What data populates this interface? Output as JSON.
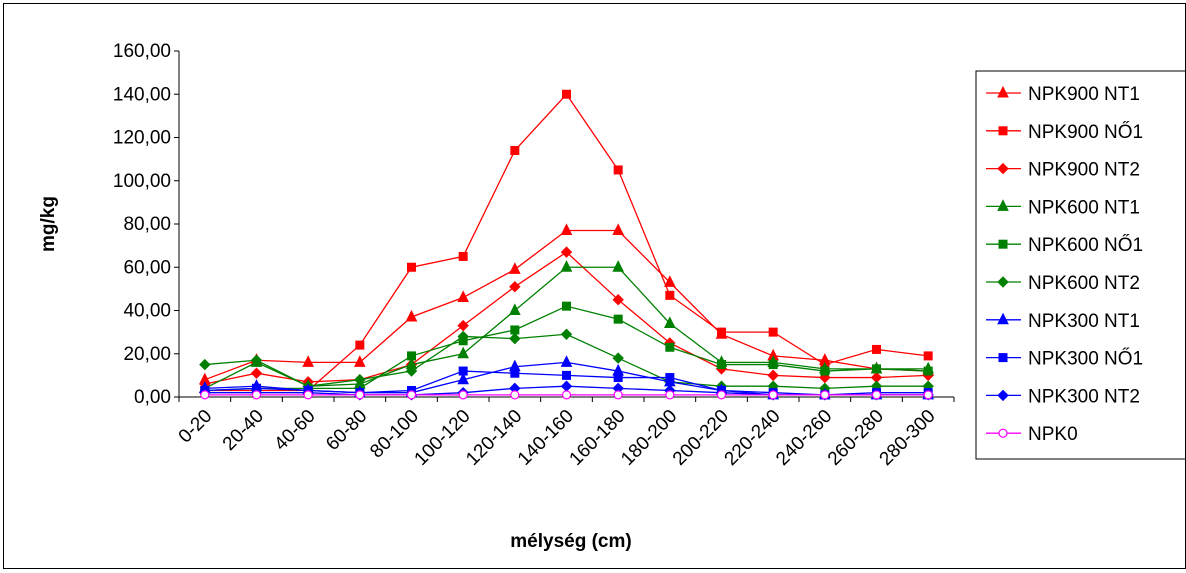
{
  "chart_data": {
    "type": "line",
    "title": "",
    "xlabel": "mélység (cm)",
    "ylabel": "mg/kg",
    "ylim": [
      0,
      160
    ],
    "yticks": [
      "0,00",
      "20,00",
      "40,00",
      "60,00",
      "80,00",
      "100,00",
      "120,00",
      "140,00",
      "160,00"
    ],
    "grid": false,
    "legend_position": "right",
    "categories": [
      "0-20",
      "20-40",
      "40-60",
      "60-80",
      "80-100",
      "100-120",
      "120-140",
      "140-160",
      "160-180",
      "180-200",
      "200-220",
      "220-240",
      "240-260",
      "260-280",
      "280-300"
    ],
    "series": [
      {
        "name": "NPK900 NT1",
        "color": "#ff0000",
        "marker": "triangle",
        "values": [
          8,
          17,
          16,
          16,
          37,
          46,
          59,
          77,
          77,
          53,
          29,
          19,
          17,
          13,
          12
        ]
      },
      {
        "name": "NPK900 NŐ1",
        "color": "#ff0000",
        "marker": "square",
        "values": [
          3,
          3,
          3,
          24,
          60,
          65,
          114,
          140,
          105,
          47,
          30,
          30,
          15,
          22,
          19
        ]
      },
      {
        "name": "NPK900 NT2",
        "color": "#ff0000",
        "marker": "diamond",
        "values": [
          6,
          11,
          7,
          8,
          15,
          33,
          51,
          67,
          45,
          25,
          13,
          10,
          9,
          9,
          10
        ]
      },
      {
        "name": "NPK600 NT1",
        "color": "#008000",
        "marker": "triangle",
        "values": [
          4,
          16,
          5,
          6,
          15,
          20,
          40,
          60,
          60,
          34,
          16,
          16,
          13,
          13,
          13
        ]
      },
      {
        "name": "NPK600 NŐ1",
        "color": "#008000",
        "marker": "square",
        "values": [
          3,
          4,
          4,
          4,
          19,
          26,
          31,
          42,
          36,
          23,
          15,
          15,
          12,
          13,
          12
        ]
      },
      {
        "name": "NPK600 NT2",
        "color": "#008000",
        "marker": "diamond",
        "values": [
          15,
          17,
          5,
          8,
          12,
          28,
          27,
          29,
          18,
          7,
          5,
          5,
          4,
          5,
          5
        ]
      },
      {
        "name": "NPK300 NT1",
        "color": "#0000ff",
        "marker": "triangle",
        "values": [
          4,
          5,
          3,
          2,
          2,
          8,
          14,
          16,
          12,
          7,
          3,
          1,
          1,
          1,
          1
        ]
      },
      {
        "name": "NPK300 NŐ1",
        "color": "#0000ff",
        "marker": "square",
        "values": [
          3,
          4,
          3,
          2,
          3,
          12,
          11,
          10,
          9,
          9,
          3,
          2,
          1,
          2,
          2
        ]
      },
      {
        "name": "NPK300 NT2",
        "color": "#0000ff",
        "marker": "diamond",
        "values": [
          2,
          2,
          2,
          1,
          1,
          2,
          4,
          5,
          4,
          3,
          2,
          1,
          1,
          1,
          1
        ]
      },
      {
        "name": "NPK0",
        "color": "#ff00ff",
        "marker": "circle-open",
        "values": [
          1,
          1,
          1,
          1,
          1,
          1,
          1,
          1,
          1,
          1,
          1,
          1,
          1,
          1,
          1
        ]
      }
    ]
  }
}
